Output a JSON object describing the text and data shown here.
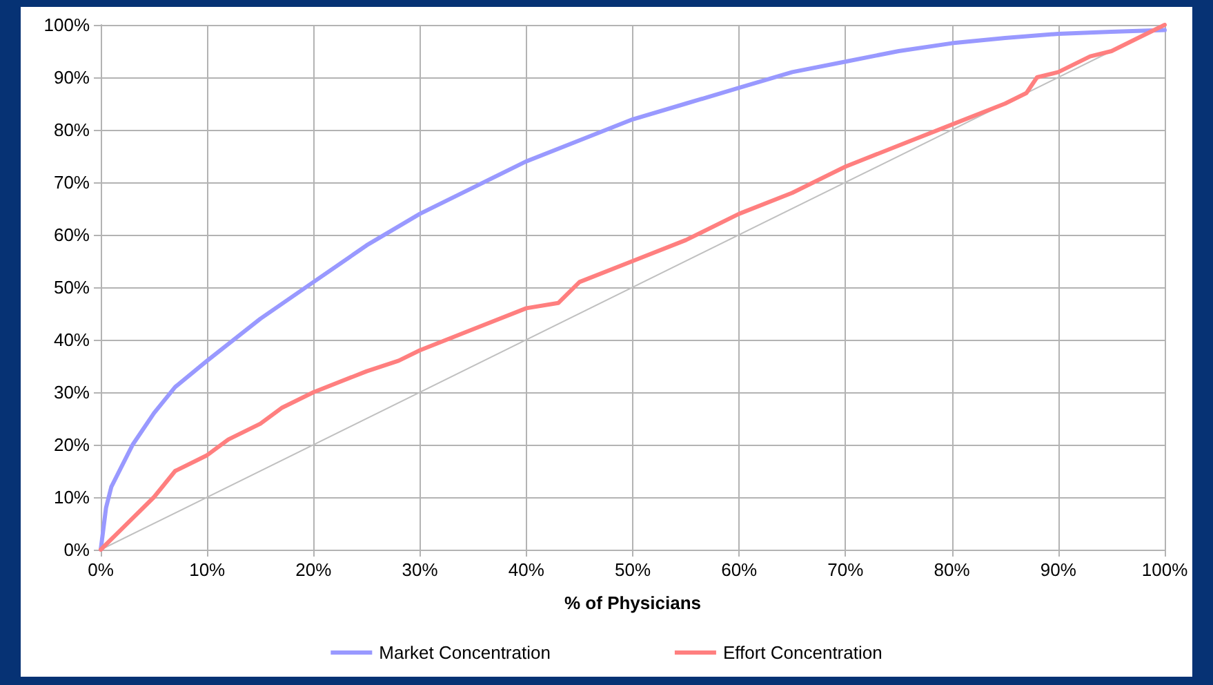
{
  "chart_data": {
    "type": "line",
    "xlabel": "% of Physicians",
    "xlim": [
      0,
      100
    ],
    "ylim": [
      0,
      100
    ],
    "xticks": [
      {
        "value": 0,
        "label": "0%"
      },
      {
        "value": 10,
        "label": "10%"
      },
      {
        "value": 20,
        "label": "20%"
      },
      {
        "value": 30,
        "label": "30%"
      },
      {
        "value": 40,
        "label": "40%"
      },
      {
        "value": 50,
        "label": "50%"
      },
      {
        "value": 60,
        "label": "60%"
      },
      {
        "value": 70,
        "label": "70%"
      },
      {
        "value": 80,
        "label": "80%"
      },
      {
        "value": 90,
        "label": "90%"
      },
      {
        "value": 100,
        "label": "100%"
      }
    ],
    "yticks": [
      {
        "value": 0,
        "label": "0%"
      },
      {
        "value": 10,
        "label": "10%"
      },
      {
        "value": 20,
        "label": "20%"
      },
      {
        "value": 30,
        "label": "30%"
      },
      {
        "value": 40,
        "label": "40%"
      },
      {
        "value": 50,
        "label": "50%"
      },
      {
        "value": 60,
        "label": "60%"
      },
      {
        "value": 70,
        "label": "70%"
      },
      {
        "value": 80,
        "label": "80%"
      },
      {
        "value": 90,
        "label": "90%"
      },
      {
        "value": 100,
        "label": "100%"
      }
    ],
    "grid": true,
    "legend": "bottom",
    "marker": "none",
    "line_style": "solid",
    "series": [
      {
        "name": "Market Concentration",
        "color": "#9999ff",
        "x": [
          0,
          0.5,
          1,
          2,
          3,
          5,
          7,
          10,
          15,
          20,
          25,
          30,
          35,
          40,
          45,
          50,
          55,
          60,
          65,
          70,
          75,
          80,
          85,
          90,
          95,
          100
        ],
        "values": [
          0,
          8,
          12,
          16,
          20,
          26,
          31,
          36,
          44,
          51,
          58,
          64,
          69,
          74,
          78,
          82,
          85,
          88,
          91,
          93,
          95,
          96.5,
          97.5,
          98.3,
          98.7,
          99
        ]
      },
      {
        "name": "Effort Concentration",
        "color": "#ff7f7f",
        "x": [
          0,
          2,
          5,
          7,
          10,
          12,
          15,
          17,
          20,
          25,
          28,
          30,
          35,
          40,
          43,
          45,
          50,
          55,
          60,
          65,
          70,
          75,
          80,
          85,
          87,
          88,
          90,
          93,
          95,
          97,
          100
        ],
        "values": [
          0,
          4,
          10,
          15,
          18,
          21,
          24,
          27,
          30,
          34,
          36,
          38,
          42,
          46,
          47,
          51,
          55,
          59,
          64,
          68,
          73,
          77,
          81,
          85,
          87,
          90,
          91,
          94,
          95,
          97,
          100
        ]
      },
      {
        "color": "#c0c0c0",
        "x": [
          0,
          100
        ],
        "values": [
          0,
          100
        ]
      }
    ]
  }
}
